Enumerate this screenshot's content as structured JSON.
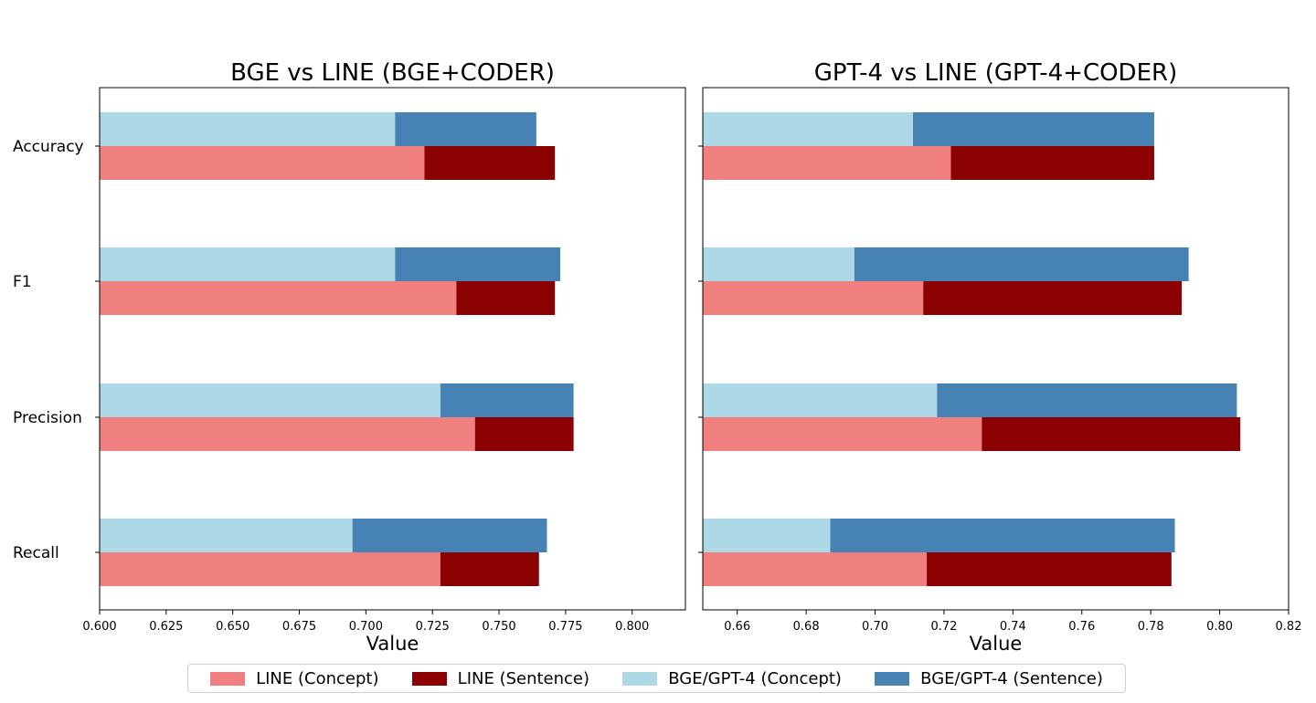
{
  "chart_data": [
    {
      "type": "bar",
      "orientation": "horizontal",
      "title": "BGE vs LINE (BGE+CODER)",
      "xlabel": "Value",
      "ylabel": "",
      "xlim": [
        0.6,
        0.82
      ],
      "xticks": [
        "0.600",
        "0.625",
        "0.650",
        "0.675",
        "0.700",
        "0.725",
        "0.750",
        "0.775",
        "0.800"
      ],
      "categories": [
        "Accuracy",
        "F1",
        "Precision",
        "Recall"
      ],
      "series": [
        {
          "name": "LINE (Concept)",
          "values": [
            0.722,
            0.734,
            0.741,
            0.728
          ]
        },
        {
          "name": "LINE (Sentence)",
          "values": [
            0.771,
            0.771,
            0.778,
            0.765
          ]
        },
        {
          "name": "BGE/GPT-4 (Concept)",
          "values": [
            0.711,
            0.711,
            0.728,
            0.695
          ]
        },
        {
          "name": "BGE/GPT-4 (Sentence)",
          "values": [
            0.764,
            0.773,
            0.778,
            0.768
          ]
        }
      ],
      "grid": false
    },
    {
      "type": "bar",
      "orientation": "horizontal",
      "title": "GPT-4 vs LINE (GPT-4+CODER)",
      "xlabel": "Value",
      "ylabel": "",
      "xlim": [
        0.65,
        0.82
      ],
      "xticks": [
        "0.66",
        "0.68",
        "0.70",
        "0.72",
        "0.74",
        "0.76",
        "0.78",
        "0.80",
        "0.82"
      ],
      "categories": [
        "Accuracy",
        "F1",
        "Precision",
        "Recall"
      ],
      "series": [
        {
          "name": "LINE (Concept)",
          "values": [
            0.722,
            0.714,
            0.731,
            0.715
          ]
        },
        {
          "name": "LINE (Sentence)",
          "values": [
            0.781,
            0.789,
            0.806,
            0.786
          ]
        },
        {
          "name": "BGE/GPT-4 (Concept)",
          "values": [
            0.711,
            0.694,
            0.718,
            0.687
          ]
        },
        {
          "name": "BGE/GPT-4 (Sentence)",
          "values": [
            0.781,
            0.791,
            0.805,
            0.787
          ]
        }
      ],
      "grid": false
    }
  ],
  "colors": {
    "line_concept": "#f08080",
    "line_sentence": "#8b0000",
    "bge_concept": "#add8e6",
    "bge_sentence": "#4682b4"
  },
  "legend": {
    "placement": "bottom-center",
    "items": [
      {
        "label": "LINE (Concept)",
        "color": "#f08080"
      },
      {
        "label": "LINE (Sentence)",
        "color": "#8b0000"
      },
      {
        "label": "BGE/GPT-4 (Concept)",
        "color": "#add8e6"
      },
      {
        "label": "BGE/GPT-4 (Sentence)",
        "color": "#4682b4"
      }
    ]
  }
}
